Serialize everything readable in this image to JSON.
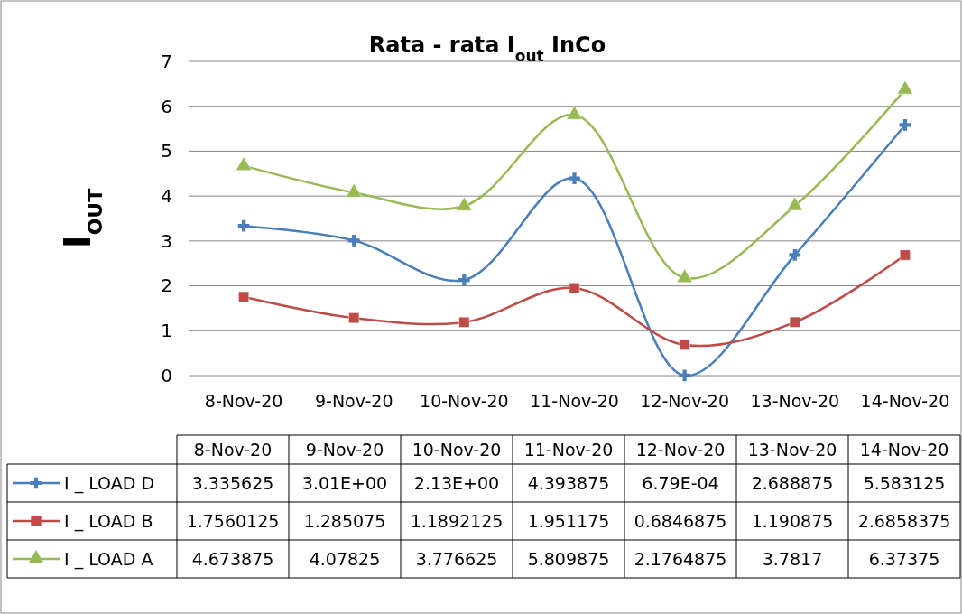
{
  "chart_data": {
    "type": "line",
    "title": "Rata - rata I$_{out}$ InCo",
    "ylabel": "I$_{OUT}$",
    "categories": [
      "8-Nov-20",
      "9-Nov-20",
      "10-Nov-20",
      "11-Nov-20",
      "12-Nov-20",
      "13-Nov-20",
      "14-Nov-20"
    ],
    "ylim": [
      0,
      7
    ],
    "yticks": [
      0,
      1,
      2,
      3,
      4,
      5,
      6,
      7
    ],
    "grid": "y",
    "legend": "bottom",
    "series": [
      {
        "name": "I _ LOAD D",
        "color": "#4a7ebb",
        "marker": "cross",
        "values": [
          3.335625,
          3.01,
          2.13,
          4.393875,
          0.000679,
          2.688875,
          5.583125
        ],
        "value_labels": [
          "3.335625",
          "3.01E+00",
          "2.13E+00",
          "4.393875",
          "6.79E-04",
          "2.688875",
          "5.583125"
        ]
      },
      {
        "name": "I _ LOAD B",
        "color": "#be4b48",
        "marker": "square",
        "values": [
          1.7560125,
          1.285075,
          1.1892125,
          1.951175,
          0.6846875,
          1.190875,
          2.6858375
        ],
        "value_labels": [
          "1.7560125",
          "1.285075",
          "1.1892125",
          "1.951175",
          "0.6846875",
          "1.190875",
          "2.6858375"
        ]
      },
      {
        "name": "I _ LOAD A",
        "color": "#98b954",
        "marker": "triangle",
        "values": [
          4.673875,
          4.07825,
          3.776625,
          5.809875,
          2.1764875,
          3.7817,
          6.37375
        ],
        "value_labels": [
          "4.673875",
          "4.07825",
          "3.776625",
          "5.809875",
          "2.1764875",
          "3.7817",
          "6.37375"
        ]
      }
    ]
  }
}
